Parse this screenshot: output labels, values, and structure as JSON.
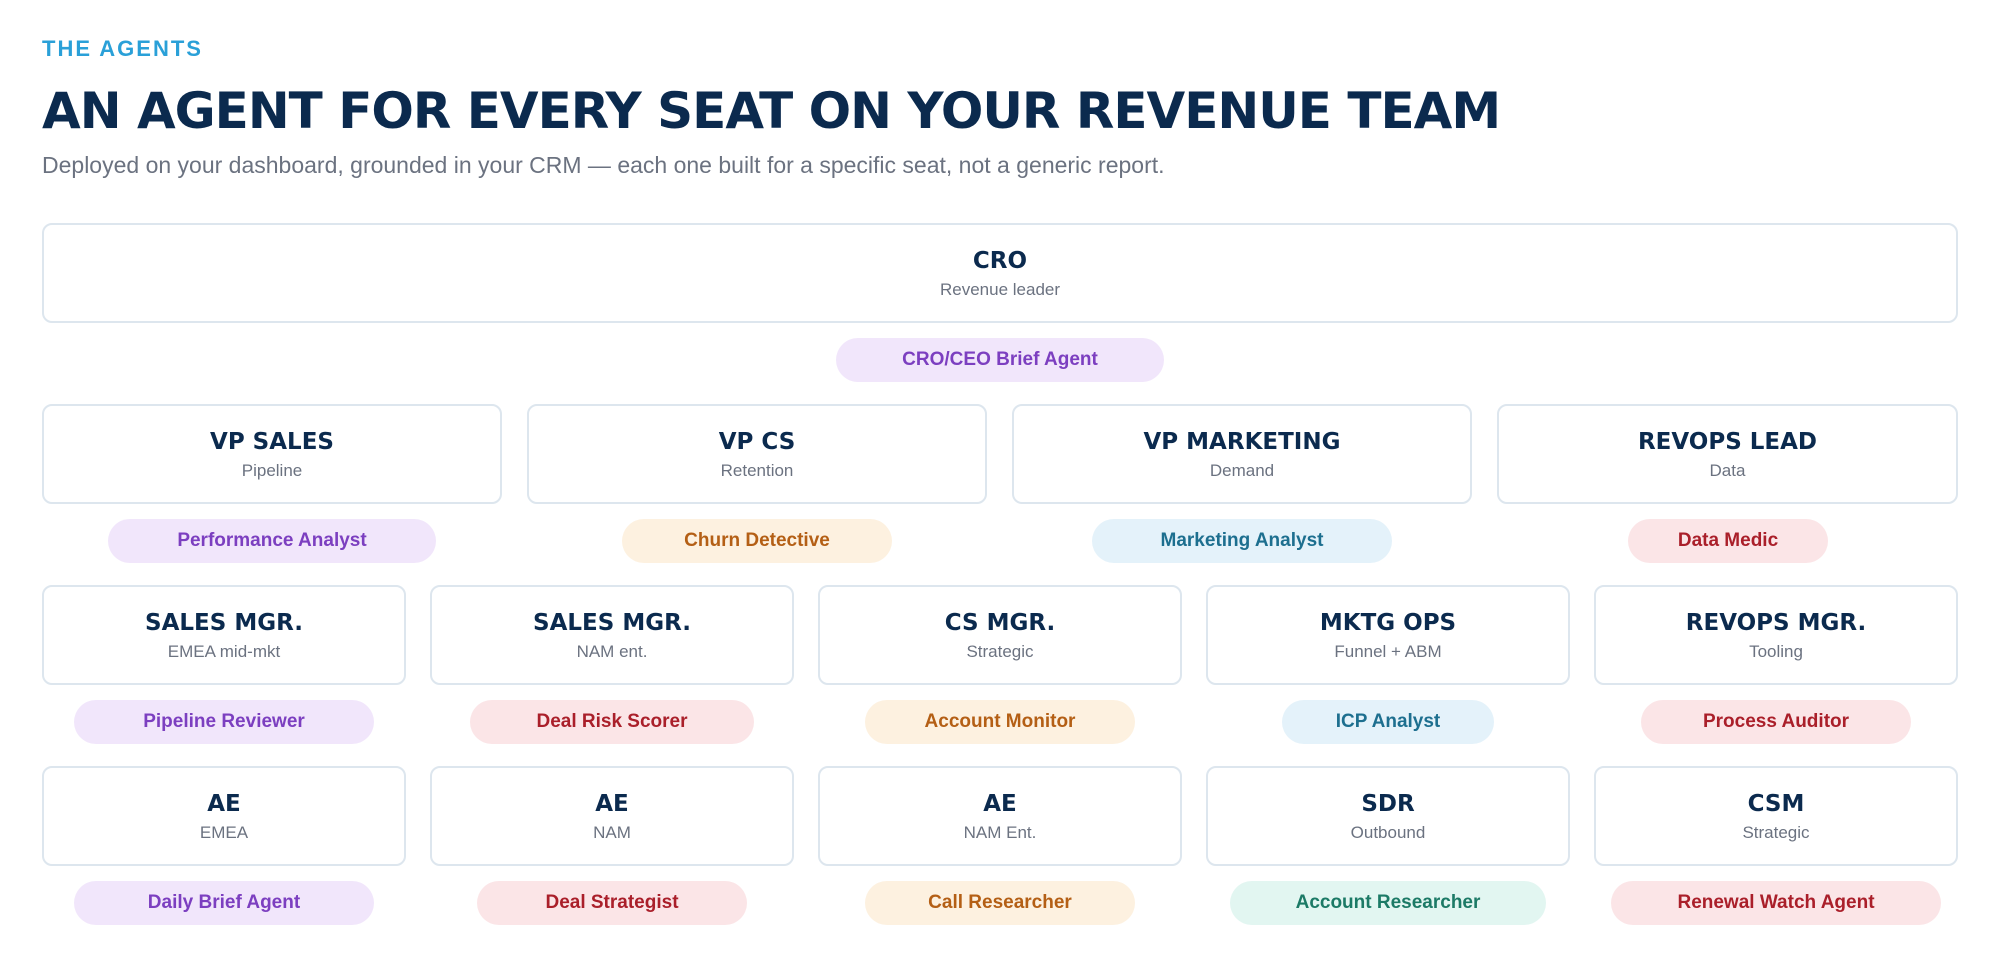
{
  "header": {
    "eyebrow": "THE AGENTS",
    "title": "AN AGENT FOR EVERY SEAT ON YOUR REVENUE TEAM",
    "subtitle": "Deployed on your dashboard, grounded in your CRM — each one built for a specific seat, not a generic report."
  },
  "colors": {
    "purple": "#7c3fc0",
    "orange": "#b45f15",
    "blue": "#1d6f8f",
    "red": "#aa1f2a",
    "teal": "#1c7a66",
    "title": "#0b2a4e",
    "eyebrow": "#2aa0d8"
  },
  "org": {
    "cro": {
      "role": "CRO",
      "sub": "Revenue leader",
      "agent": "CRO/CEO Brief Agent",
      "color": "purple"
    },
    "vps": [
      {
        "role": "VP SALES",
        "sub": "Pipeline",
        "agent": "Performance Analyst",
        "color": "purple"
      },
      {
        "role": "VP CS",
        "sub": "Retention",
        "agent": "Churn Detective",
        "color": "orange"
      },
      {
        "role": "VP MARKETING",
        "sub": "Demand",
        "agent": "Marketing Analyst",
        "color": "blue"
      },
      {
        "role": "REVOPS LEAD",
        "sub": "Data",
        "agent": "Data Medic",
        "color": "red"
      }
    ],
    "managers": [
      {
        "role": "SALES MGR.",
        "sub": "EMEA mid-mkt",
        "agent": "Pipeline Reviewer",
        "color": "purple"
      },
      {
        "role": "SALES MGR.",
        "sub": "NAM ent.",
        "agent": "Deal Risk Scorer",
        "color": "red"
      },
      {
        "role": "CS MGR.",
        "sub": "Strategic",
        "agent": "Account Monitor",
        "color": "orange"
      },
      {
        "role": "MKTG OPS",
        "sub": "Funnel + ABM",
        "agent": "ICP Analyst",
        "color": "blue"
      },
      {
        "role": "REVOPS MGR.",
        "sub": "Tooling",
        "agent": "Process Auditor",
        "color": "red"
      }
    ],
    "reps": [
      {
        "role": "AE",
        "sub": "EMEA",
        "agent": "Daily Brief Agent",
        "color": "purple"
      },
      {
        "role": "AE",
        "sub": "NAM",
        "agent": "Deal Strategist",
        "color": "red"
      },
      {
        "role": "AE",
        "sub": "NAM Ent.",
        "agent": "Call Researcher",
        "color": "orange"
      },
      {
        "role": "SDR",
        "sub": "Outbound",
        "agent": "Account Researcher",
        "color": "teal"
      },
      {
        "role": "CSM",
        "sub": "Strategic",
        "agent": "Renewal Watch Agent",
        "color": "red"
      }
    ]
  }
}
